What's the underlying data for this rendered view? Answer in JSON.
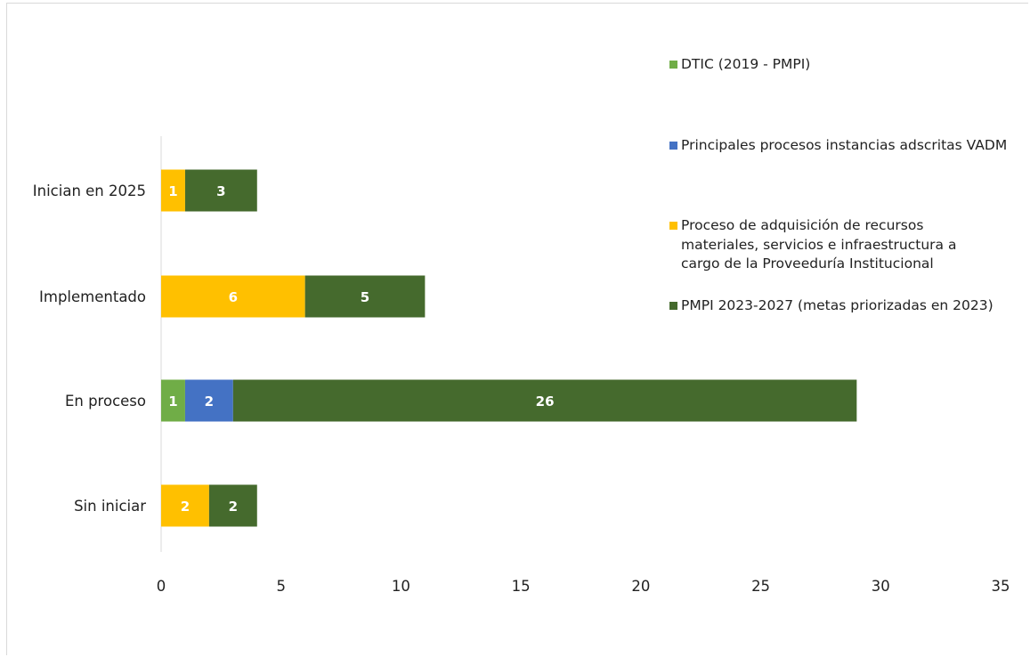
{
  "chart_data": {
    "type": "bar",
    "orientation": "horizontal",
    "stacked": true,
    "categories": [
      "Inician en 2025",
      "Implementado",
      "En proceso",
      "Sin iniciar"
    ],
    "series": [
      {
        "name": "DTIC (2019 - PMPI)",
        "color": "#70ad47",
        "values": [
          0,
          0,
          1,
          0
        ]
      },
      {
        "name": "Principales procesos instancias adscritas VADM",
        "color": "#4472c4",
        "values": [
          0,
          0,
          2,
          0
        ]
      },
      {
        "name": "Proceso de adquisición de recursos materiales, servicios e infraestructura a cargo de la Proveeduría Institucional",
        "color": "#ffc000",
        "values": [
          1,
          6,
          0,
          2
        ]
      },
      {
        "name": "PMPI 2023-2027 (metas priorizadas en 2023)",
        "color": "#456a2d",
        "values": [
          3,
          5,
          26,
          2
        ]
      }
    ],
    "xlim": [
      0,
      35
    ],
    "xticks": [
      0,
      5,
      10,
      15,
      20,
      25,
      30,
      35
    ],
    "legend_position": "right",
    "grid": false,
    "data_labels": true
  }
}
